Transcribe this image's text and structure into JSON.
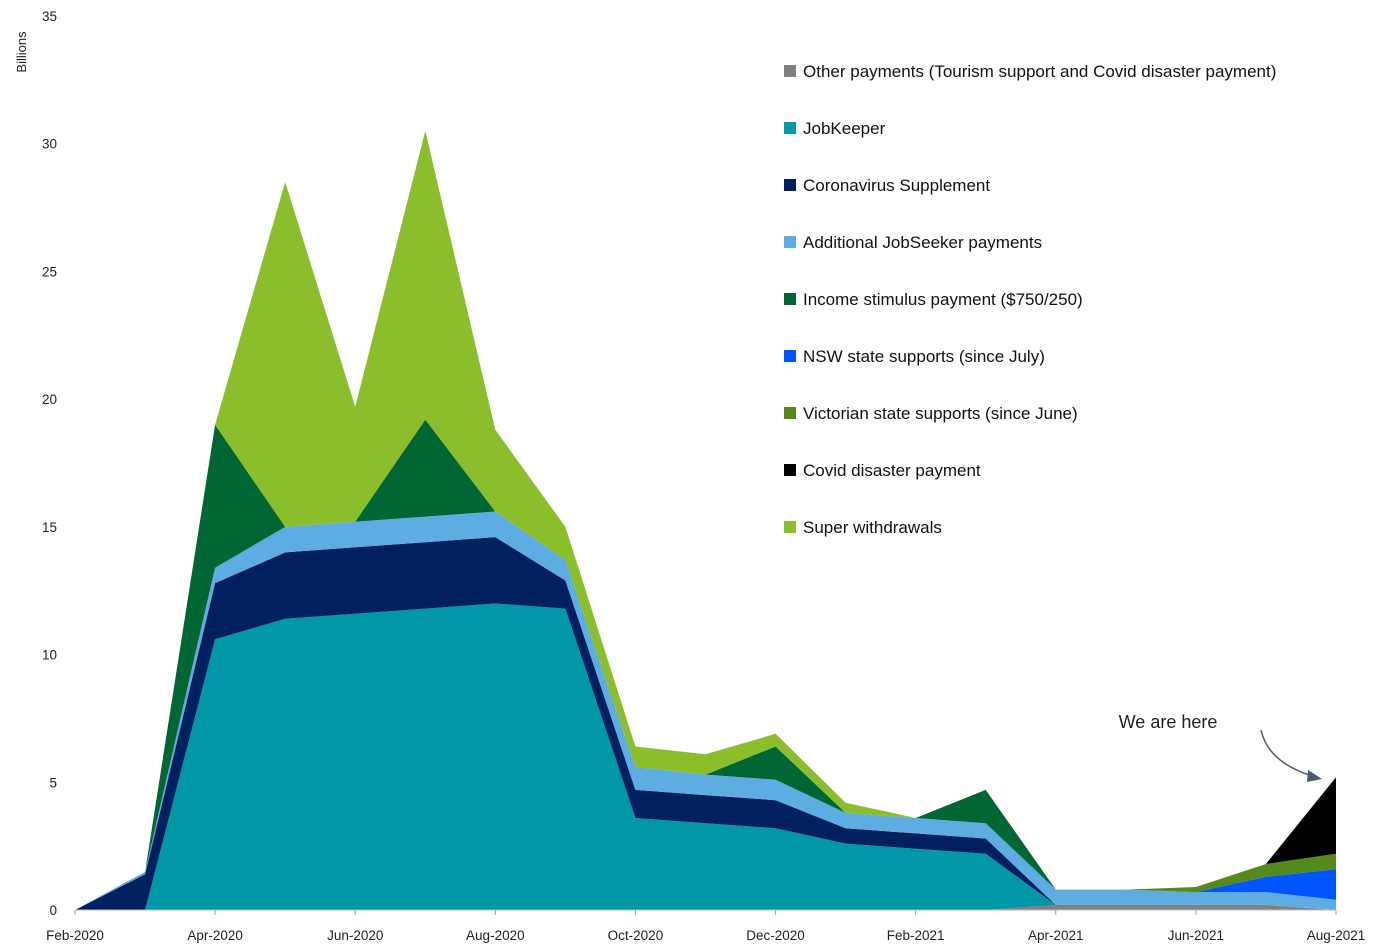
{
  "chart_data": {
    "type": "area",
    "stacked": true,
    "ylabel": "Billions",
    "ylim": [
      0,
      35
    ],
    "yticks": [
      0,
      5,
      10,
      15,
      20,
      25,
      30,
      35
    ],
    "x": [
      "Feb-2020",
      "Mar-2020",
      "Apr-2020",
      "May-2020",
      "Jun-2020",
      "Jul-2020",
      "Aug-2020",
      "Sep-2020",
      "Oct-2020",
      "Nov-2020",
      "Dec-2020",
      "Jan-2021",
      "Feb-2021",
      "Mar-2021",
      "Apr-2021",
      "May-2021",
      "Jun-2021",
      "Jul-2021",
      "Aug-2021"
    ],
    "xtick_labels": [
      "Feb-2020",
      "Apr-2020",
      "Jun-2020",
      "Aug-2020",
      "Oct-2020",
      "Dec-2020",
      "Feb-2021",
      "Apr-2021",
      "Jun-2021",
      "Aug-2021"
    ],
    "xtick_indices": [
      0,
      2,
      4,
      6,
      8,
      10,
      12,
      14,
      16,
      18
    ],
    "legend_position": "top-right",
    "series": [
      {
        "name": "Other payments (Tourism support and Covid disaster payment)",
        "color": "#808080",
        "values": [
          0,
          0,
          0,
          0,
          0,
          0,
          0,
          0,
          0,
          0,
          0,
          0,
          0,
          0,
          0.2,
          0.2,
          0.2,
          0.2,
          0
        ]
      },
      {
        "name": "JobKeeper",
        "color": "#0097A7",
        "values": [
          0,
          0,
          10.6,
          11.4,
          11.6,
          11.8,
          12.0,
          11.8,
          3.6,
          3.4,
          3.2,
          2.6,
          2.4,
          2.2,
          0,
          0,
          0,
          0,
          0
        ]
      },
      {
        "name": "Coronavirus Supplement",
        "color": "#002060",
        "values": [
          0,
          1.4,
          2.2,
          2.6,
          2.6,
          2.6,
          2.6,
          1.1,
          1.1,
          1.1,
          1.1,
          0.6,
          0.6,
          0.6,
          0,
          0,
          0,
          0,
          0
        ]
      },
      {
        "name": "Additional JobSeeker payments",
        "color": "#5DADE2",
        "values": [
          0,
          0.1,
          0.6,
          1.0,
          1.0,
          1.0,
          1.0,
          0.8,
          0.9,
          0.8,
          0.8,
          0.6,
          0.6,
          0.6,
          0.6,
          0.6,
          0.5,
          0.5,
          0.4
        ]
      },
      {
        "name": "Income stimulus payment ($750/250)",
        "color": "#006633",
        "values": [
          0,
          0,
          5.6,
          0,
          0,
          3.8,
          0,
          0,
          0,
          0,
          1.3,
          0,
          0,
          1.3,
          0,
          0,
          0,
          0,
          0
        ]
      },
      {
        "name": "NSW state supports (since July)",
        "color": "#0055FF",
        "values": [
          0,
          0,
          0,
          0,
          0,
          0,
          0,
          0,
          0,
          0,
          0,
          0,
          0,
          0,
          0,
          0,
          0,
          0.6,
          1.2
        ]
      },
      {
        "name": "Victorian state supports (since June)",
        "color": "#548A1C",
        "values": [
          0,
          0,
          0,
          0,
          0,
          0,
          0,
          0,
          0,
          0,
          0,
          0,
          0,
          0,
          0,
          0,
          0.2,
          0.5,
          0.6
        ]
      },
      {
        "name": "Covid disaster payment",
        "color": "#000000",
        "values": [
          0,
          0,
          0,
          0,
          0,
          0,
          0,
          0,
          0,
          0,
          0,
          0,
          0,
          0,
          0,
          0,
          0,
          0,
          3.0
        ]
      },
      {
        "name": "Super withdrawals",
        "color": "#8BBE2B",
        "values": [
          0,
          0,
          0,
          13.5,
          4.5,
          11.3,
          3.2,
          1.3,
          0.8,
          0.8,
          0.5,
          0.4,
          0,
          0,
          0,
          0,
          0,
          0,
          0
        ]
      }
    ],
    "annotation": {
      "text": "We are here",
      "x_index": 18
    }
  }
}
